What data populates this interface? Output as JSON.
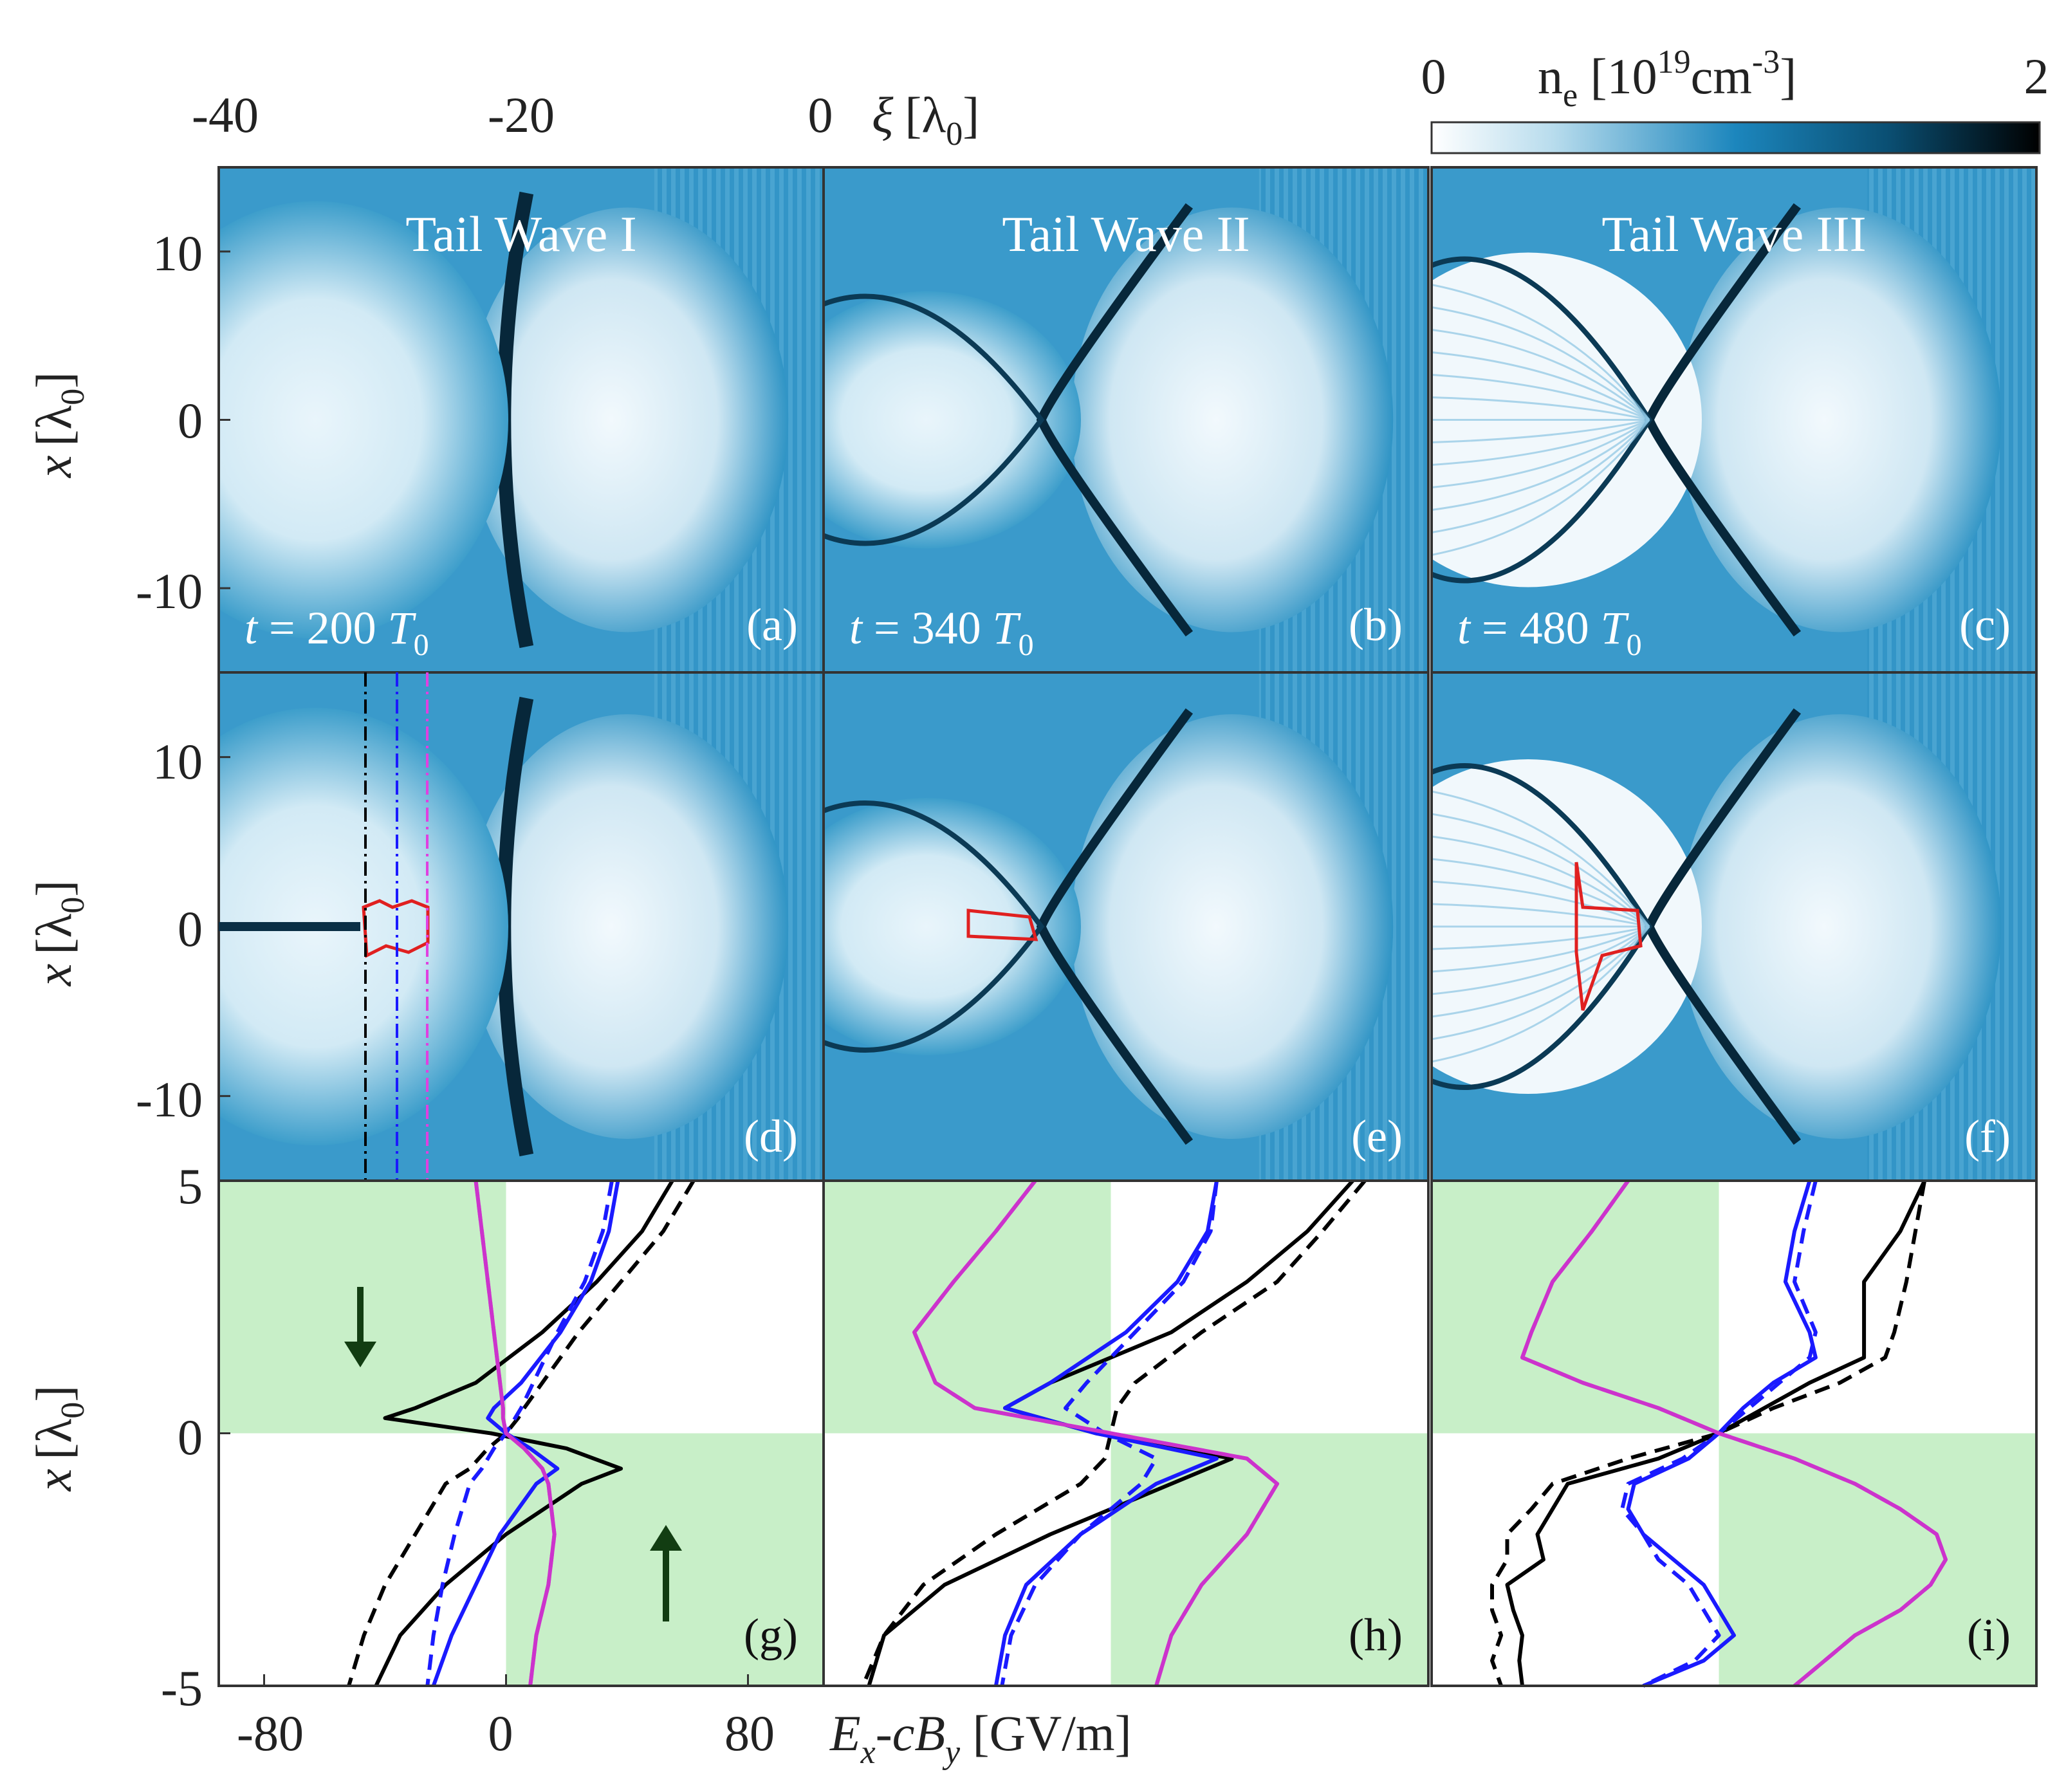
{
  "colorbar": {
    "label_prefix": "n",
    "label_sub": "e",
    "label_unit_open": " [10",
    "label_sup": "19",
    "label_unit_close": "cm",
    "label_sup2": "-3",
    "label_bracket": "]",
    "min_label": "0",
    "max_label": "2",
    "colors": {
      "low": "#ffffff",
      "mid": "#1c86bd",
      "high": "#000000"
    }
  },
  "top_axis": {
    "ticks": [
      "-40",
      "-20",
      "0"
    ],
    "label_symbol": "ξ",
    "label_unit": "[λ",
    "label_sub": "0",
    "label_close": "]"
  },
  "left_axis": {
    "label_symbol": "x",
    "label_unit": "[λ",
    "label_sub": "0",
    "label_close": "]",
    "density_ticks": [
      "10",
      "0",
      "-10"
    ],
    "field_ticks": [
      "5",
      "0",
      "-5"
    ]
  },
  "bottom_axis": {
    "ticks": [
      "-80",
      "0",
      "80"
    ],
    "label_E": "E",
    "label_Esub": "x",
    "label_mid": "-cB",
    "label_Bsub": "y",
    "label_unit": " [GV/m]"
  },
  "panels_top": [
    {
      "title": "Tail Wave I",
      "time_prefix": "t",
      "time_value": " = 200 ",
      "time_unit": "T",
      "time_sub": "0",
      "tag": "(a)"
    },
    {
      "title": "Tail Wave II",
      "time_prefix": "t",
      "time_value": " = 340 ",
      "time_unit": "T",
      "time_sub": "0",
      "tag": "(b)"
    },
    {
      "title": "Tail Wave III",
      "time_prefix": "t",
      "time_value": " = 480 ",
      "time_unit": "T",
      "time_sub": "0",
      "tag": "(c)"
    }
  ],
  "panels_mid": [
    {
      "tag": "(d)"
    },
    {
      "tag": "(e)"
    },
    {
      "tag": "(f)"
    }
  ],
  "panels_bottom": [
    {
      "tag": "(g)"
    },
    {
      "tag": "(h)"
    },
    {
      "tag": "(i)"
    }
  ],
  "chart_data": {
    "type": "line",
    "density_maps": {
      "xi_range": [
        -47,
        0
      ],
      "x_range": [
        -15,
        15
      ],
      "colorbar_range": [
        0,
        2
      ],
      "cbar_units": "10^19 cm^-3"
    },
    "field_profiles": {
      "x_axis_label": "E_x-cB_y [GV/m]",
      "y_axis_label": "x [λ0]",
      "ylim": [
        -5,
        5
      ],
      "xlim": [
        -95,
        105
      ],
      "shaded_quadrants": "upper-left and lower-right",
      "series_colors": {
        "black": "#000000",
        "blue": "#1a1aff",
        "magenta": "#cc33cc"
      },
      "panel_g": {
        "x": [
          5,
          4,
          3,
          2,
          1,
          0.5,
          0.3,
          0,
          -0.3,
          -0.7,
          -1,
          -2,
          -3,
          -4,
          -5
        ],
        "black_solid": [
          55,
          45,
          30,
          12,
          -10,
          -30,
          -40,
          -5,
          20,
          38,
          25,
          0,
          -20,
          -35,
          -43
        ],
        "black_dashed": [
          62,
          52,
          38,
          24,
          12,
          6,
          4,
          0,
          -6,
          -12,
          -20,
          -30,
          -40,
          -47,
          -52
        ],
        "blue_solid": [
          37,
          34,
          28,
          18,
          5,
          -4,
          -6,
          0,
          8,
          17,
          10,
          -2,
          -10,
          -18,
          -24
        ],
        "blue_dashed": [
          35,
          32,
          26,
          17,
          9,
          5,
          3,
          0,
          -4,
          -8,
          -12,
          -17,
          -21,
          -24,
          -26
        ],
        "magenta_solid": [
          -10,
          -8,
          -6,
          -4,
          -2,
          -1,
          -1,
          0,
          6,
          12,
          14,
          16,
          14,
          10,
          8
        ],
        "magenta_dashed": [
          -10,
          -8,
          -6,
          -4,
          -2,
          -1,
          -1,
          0,
          6,
          12,
          14,
          16,
          14,
          10,
          8
        ]
      },
      "panel_h": {
        "x": [
          5,
          4,
          3,
          2,
          1,
          0.5,
          0,
          -0.5,
          -1,
          -2,
          -3,
          -4,
          -5
        ],
        "black_solid": [
          80,
          65,
          45,
          20,
          -20,
          -35,
          -5,
          40,
          20,
          -20,
          -55,
          -75,
          -80
        ],
        "black_dashed": [
          84,
          70,
          55,
          30,
          8,
          2,
          0,
          -2,
          -10,
          -38,
          -62,
          -75,
          -82
        ],
        "blue_solid": [
          35,
          32,
          22,
          5,
          -20,
          -35,
          -5,
          35,
          15,
          -10,
          -28,
          -35,
          -38
        ],
        "blue_dashed": [
          35,
          33,
          24,
          8,
          -8,
          -15,
          -2,
          15,
          10,
          -10,
          -25,
          -33,
          -36
        ],
        "magenta_solid": [
          -25,
          -38,
          -52,
          -65,
          -58,
          -45,
          0,
          45,
          55,
          45,
          30,
          20,
          15
        ],
        "magenta_dashed": [
          -25,
          -38,
          -52,
          -65,
          -58,
          -45,
          0,
          45,
          55,
          45,
          30,
          20,
          15
        ]
      },
      "panel_i": {
        "x": [
          5,
          4,
          3,
          2,
          1.5,
          1,
          0.5,
          0,
          -0.5,
          -1,
          -1.5,
          -2,
          -2.5,
          -3,
          -3.5,
          -4,
          -4.5,
          -5
        ],
        "black_solid": [
          68,
          60,
          48,
          48,
          48,
          30,
          15,
          0,
          -20,
          -50,
          -55,
          -60,
          -58,
          -70,
          -68,
          -65,
          -66,
          -65
        ],
        "black_dashed": [
          68,
          65,
          62,
          58,
          55,
          40,
          18,
          0,
          -30,
          -55,
          -62,
          -70,
          -70,
          -75,
          -75,
          -72,
          -75,
          -72
        ],
        "blue_solid": [
          30,
          25,
          22,
          30,
          32,
          18,
          8,
          0,
          -10,
          -28,
          -30,
          -25,
          -15,
          -5,
          0,
          5,
          -5,
          -25
        ],
        "blue_dashed": [
          32,
          28,
          25,
          32,
          30,
          20,
          10,
          0,
          -12,
          -30,
          -32,
          -25,
          -20,
          -10,
          -5,
          0,
          -8,
          -25
        ],
        "magenta_solid": [
          -30,
          -42,
          -55,
          -62,
          -65,
          -45,
          -20,
          0,
          25,
          45,
          60,
          72,
          75,
          70,
          60,
          45,
          35,
          25
        ],
        "magenta_dashed": [
          -30,
          -42,
          -55,
          -62,
          -65,
          -45,
          -20,
          0,
          25,
          45,
          60,
          72,
          75,
          70,
          60,
          45,
          35,
          25
        ]
      }
    }
  }
}
